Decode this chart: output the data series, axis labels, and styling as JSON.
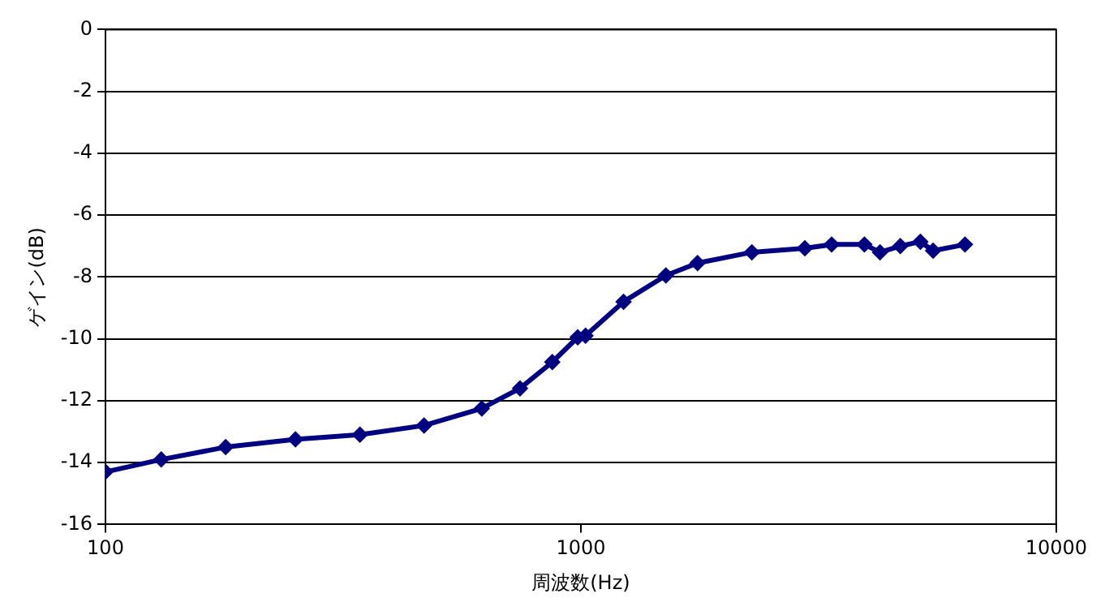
{
  "chart_data": {
    "type": "line",
    "xlabel": "周波数(Hz)",
    "ylabel": "ゲイン(dB)",
    "log": "x",
    "xlim": [
      100,
      10000
    ],
    "xticks": [
      100,
      1000,
      10000
    ],
    "ylim": [
      -16,
      0
    ],
    "yticks": [
      -16,
      -14,
      -12,
      -10,
      -8,
      -6,
      -4,
      -2,
      0
    ],
    "grid": "y",
    "legend": false,
    "marker": "diamond",
    "line_style": "solid",
    "series": [
      {
        "color": "#000080",
        "x": [
          100,
          131,
          179,
          251,
          343,
          468,
          619,
          745,
          871,
          985,
          1023,
          1230,
          1510,
          1760,
          2290,
          2960,
          3370,
          3950,
          4260,
          4700,
          5180,
          5510,
          6430
        ],
        "values": [
          -14.3,
          -13.9,
          -13.5,
          -13.25,
          -13.1,
          -12.8,
          -12.25,
          -11.6,
          -10.75,
          -9.95,
          -9.9,
          -8.8,
          -7.95,
          -7.55,
          -7.2,
          -7.07,
          -6.95,
          -6.95,
          -7.2,
          -7.0,
          -6.86,
          -7.15,
          -6.95
        ]
      }
    ]
  }
}
